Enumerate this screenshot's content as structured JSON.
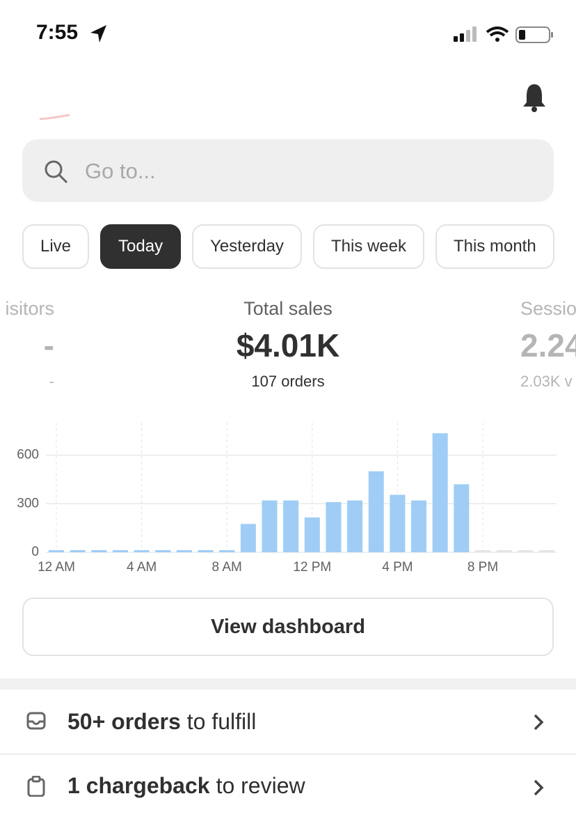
{
  "status_bar": {
    "time": "7:55"
  },
  "search": {
    "placeholder": "Go to..."
  },
  "tabs": [
    "Live",
    "Today",
    "Yesterday",
    "This week",
    "This month"
  ],
  "metrics": [
    {
      "label": "isitors",
      "value": "-",
      "sub": "-"
    },
    {
      "label": "Total sales",
      "value": "$4.01K",
      "sub": "107 orders"
    },
    {
      "label": "Sessio",
      "value": "2.24",
      "sub": "2.03K v"
    }
  ],
  "chart_data": {
    "type": "bar",
    "categories": [
      "12 AM",
      null,
      null,
      null,
      "4 AM",
      null,
      null,
      null,
      "8 AM",
      null,
      null,
      null,
      "12 PM",
      null,
      null,
      null,
      "4 PM",
      null,
      null,
      null,
      "8 PM",
      null,
      null,
      null
    ],
    "values": [
      0,
      0,
      0,
      0,
      0,
      0,
      0,
      0,
      0,
      175,
      320,
      320,
      215,
      310,
      320,
      500,
      355,
      320,
      735,
      420,
      null,
      null,
      null,
      null
    ],
    "color": "#9fcdf5",
    "ylim": [
      0,
      800
    ],
    "yticks": [
      0,
      300,
      600
    ],
    "grid": true
  },
  "button": "View dashboard",
  "tasks": [
    {
      "bold": "50+ orders",
      "rest": "to fulfill"
    },
    {
      "bold": "1 chargeback",
      "rest": "to review"
    }
  ]
}
